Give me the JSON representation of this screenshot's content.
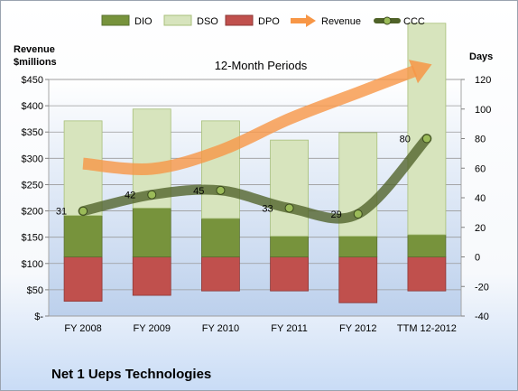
{
  "chart_data": {
    "type": "bar",
    "title": "12-Month Periods",
    "footer": "Net 1 Ueps Technologies",
    "left_axis_title": [
      "Revenue",
      "$millions"
    ],
    "right_axis_title": "Days",
    "categories": [
      "FY 2008",
      "FY 2009",
      "FY 2010",
      "FY 2011",
      "FY 2012",
      "TTM 12-2012"
    ],
    "left_ticks": [
      "$-",
      "$50",
      "$100",
      "$150",
      "$200",
      "$250",
      "$300",
      "$350",
      "$400",
      "$450"
    ],
    "right_ticks": [
      "-40",
      "-20",
      "0",
      "20",
      "40",
      "60",
      "80",
      "100",
      "120"
    ],
    "left_ylim": [
      0,
      450
    ],
    "right_ylim": [
      -40,
      120
    ],
    "series": [
      {
        "name": "DIO",
        "values": [
          28,
          33,
          26,
          14,
          14,
          15
        ]
      },
      {
        "name": "DSO",
        "values": [
          64,
          67,
          66,
          65,
          70,
          143
        ]
      },
      {
        "name": "DPO",
        "values": [
          -30,
          -26,
          -23,
          -23,
          -31,
          -23
        ]
      },
      {
        "name": "Revenue",
        "values": [
          290,
          280,
          315,
          375,
          425,
          475
        ]
      },
      {
        "name": "CCC",
        "values": [
          31,
          42,
          45,
          33,
          29,
          80
        ]
      }
    ],
    "ccc_labels": [
      "31",
      "42",
      "45",
      "33",
      "29",
      "80"
    ],
    "legend_position": "top",
    "colors": {
      "dio": "#77933c",
      "dso": "#d7e4bd",
      "dpo": "#c0504d",
      "revenue": "#f79646",
      "ccc": "#4f6228"
    },
    "grid": true
  }
}
